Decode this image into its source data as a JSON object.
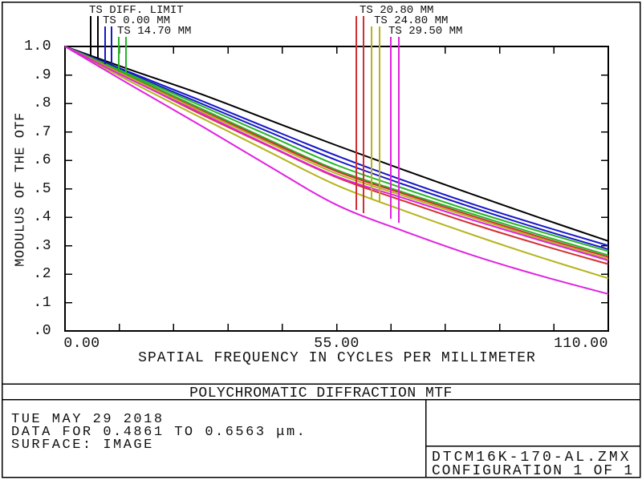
{
  "chart_data": {
    "type": "line",
    "title": "POLYCHROMATIC DIFFRACTION MTF",
    "xlabel": "SPATIAL FREQUENCY IN CYCLES PER MILLIMETER",
    "ylabel": "MODULUS OF THE OTF",
    "xlim": [
      0,
      110
    ],
    "ylim": [
      0.0,
      1.0
    ],
    "x_tick_step": 11,
    "y_tick_step": 0.1,
    "grid": false,
    "legend_position": "top-callouts",
    "x_tick_labels": [
      {
        "value": 0,
        "label": "0.00"
      },
      {
        "value": 55,
        "label": "55.00"
      },
      {
        "value": 110,
        "label": "110.00"
      }
    ],
    "y_tick_labels": [
      {
        "value": 1.0,
        "label": "1.0"
      },
      {
        "value": 0.9,
        "label": ".9"
      },
      {
        "value": 0.8,
        "label": ".8"
      },
      {
        "value": 0.7,
        "label": ".7"
      },
      {
        "value": 0.6,
        "label": ".6"
      },
      {
        "value": 0.5,
        "label": ".5"
      },
      {
        "value": 0.4,
        "label": ".4"
      },
      {
        "value": 0.3,
        "label": ".3"
      },
      {
        "value": 0.2,
        "label": ".2"
      },
      {
        "value": 0.1,
        "label": ".1"
      },
      {
        "value": 0.0,
        "label": ".0"
      }
    ],
    "palette": {
      "black": "#000000",
      "blue": "#1616c8",
      "green": "#28b428",
      "red": "#d23030",
      "yellow": "#b4b41e",
      "magenta": "#e022e0"
    },
    "legend": [
      {
        "label": "TS DIFF. LIMIT",
        "color": "black"
      },
      {
        "label": "TS 0.00 MM",
        "color": "blue"
      },
      {
        "label": "TS 14.70 MM",
        "color": "green"
      },
      {
        "label": "TS 20.80 MM",
        "color": "red"
      },
      {
        "label": "TS 24.80 MM",
        "color": "yellow"
      },
      {
        "label": "TS 29.50 MM",
        "color": "magenta"
      }
    ],
    "x": [
      0,
      13.75,
      27.5,
      41.25,
      55,
      68.75,
      82.5,
      96.25,
      110
    ],
    "series": [
      {
        "name": "Diffraction Limit",
        "color": "black",
        "values": [
          1.0,
          0.915,
          0.833,
          0.742,
          0.652,
          0.565,
          0.48,
          0.397,
          0.316
        ]
      },
      {
        "name": "T 0.00 MM",
        "color": "blue",
        "values": [
          1.0,
          0.905,
          0.81,
          0.712,
          0.616,
          0.528,
          0.446,
          0.371,
          0.3
        ]
      },
      {
        "name": "S 0.00 MM",
        "color": "blue",
        "values": [
          1.0,
          0.9,
          0.8,
          0.7,
          0.6,
          0.514,
          0.434,
          0.358,
          0.287
        ]
      },
      {
        "name": "T 14.70 MM",
        "color": "green",
        "values": [
          1.0,
          0.897,
          0.792,
          0.687,
          0.583,
          0.5,
          0.421,
          0.349,
          0.28
        ]
      },
      {
        "name": "S 14.70 MM",
        "color": "green",
        "values": [
          1.0,
          0.892,
          0.782,
          0.672,
          0.566,
          0.486,
          0.411,
          0.337,
          0.266
        ]
      },
      {
        "name": "S 20.80 MM",
        "color": "red",
        "values": [
          1.0,
          0.887,
          0.776,
          0.667,
          0.561,
          0.481,
          0.404,
          0.33,
          0.26
        ]
      },
      {
        "name": "T 20.80 MM",
        "color": "red",
        "values": [
          1.0,
          0.882,
          0.762,
          0.65,
          0.54,
          0.456,
          0.376,
          0.303,
          0.235
        ]
      },
      {
        "name": "S 24.80 MM",
        "color": "yellow",
        "values": [
          1.0,
          0.885,
          0.772,
          0.661,
          0.553,
          0.474,
          0.398,
          0.324,
          0.253
        ]
      },
      {
        "name": "T 24.80 MM",
        "color": "yellow",
        "values": [
          1.0,
          0.872,
          0.75,
          0.63,
          0.512,
          0.422,
          0.338,
          0.259,
          0.185
        ]
      },
      {
        "name": "S 29.50 MM",
        "color": "magenta",
        "values": [
          1.0,
          0.88,
          0.766,
          0.652,
          0.543,
          0.466,
          0.39,
          0.318,
          0.248
        ]
      },
      {
        "name": "T 29.50 MM",
        "color": "magenta",
        "values": [
          1.0,
          0.86,
          0.722,
          0.58,
          0.443,
          0.35,
          0.266,
          0.194,
          0.13
        ]
      }
    ]
  },
  "footer": {
    "date": "TUE MAY 29 2018",
    "data_range": "DATA FOR 0.4861 TO 0.6563 μm.",
    "surface": "SURFACE: IMAGE",
    "file_name": "DTCM16K-170-AL.ZMX",
    "configuration": "CONFIGURATION 1 OF 1"
  }
}
